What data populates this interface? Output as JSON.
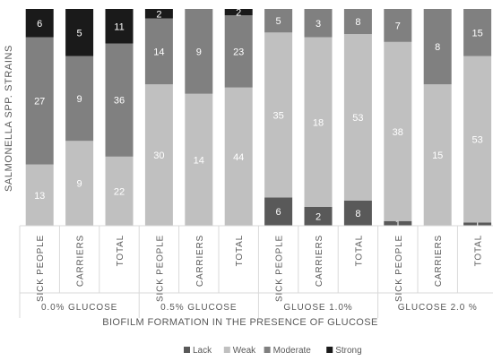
{
  "chart_data": {
    "type": "bar",
    "stacked": true,
    "normalized": true,
    "ylabel": "SALMONELLA SPP. STRAINS",
    "xlabel": "BIOFILM FORMATION IN THE PRESENCE OF GLUCOSE",
    "groups": [
      "0.0% GLUCOSE",
      "0.5% GLUCOSE",
      "GLUOSE 1.0%",
      "GLUCOSE 2.0 %"
    ],
    "categories": [
      "SICK PEOPLE",
      "CARRIERS",
      "TOTAL"
    ],
    "legend_position": "bottom",
    "series": [
      {
        "name": "Lack",
        "color": "#595959",
        "values": [
          [
            0,
            0,
            0
          ],
          [
            0,
            0,
            0
          ],
          [
            6,
            2,
            8
          ],
          [
            1,
            0,
            1
          ]
        ]
      },
      {
        "name": "Weak",
        "color": "#c0c0c0",
        "values": [
          [
            13,
            9,
            22
          ],
          [
            30,
            14,
            44
          ],
          [
            35,
            18,
            53
          ],
          [
            38,
            15,
            53
          ]
        ]
      },
      {
        "name": "Moderate",
        "color": "#808080",
        "values": [
          [
            27,
            9,
            36
          ],
          [
            14,
            9,
            23
          ],
          [
            5,
            3,
            8
          ],
          [
            7,
            8,
            15
          ]
        ]
      },
      {
        "name": "Strong",
        "color": "#1a1a1a",
        "values": [
          [
            6,
            5,
            11
          ],
          [
            2,
            0,
            2
          ],
          [
            0,
            0,
            0
          ],
          [
            0,
            0,
            0
          ]
        ]
      }
    ],
    "label_colors": {
      "Lack": "#ffffff",
      "Weak": "#ffffff",
      "Moderate": "#ffffff",
      "Strong": "#ffffff"
    }
  }
}
